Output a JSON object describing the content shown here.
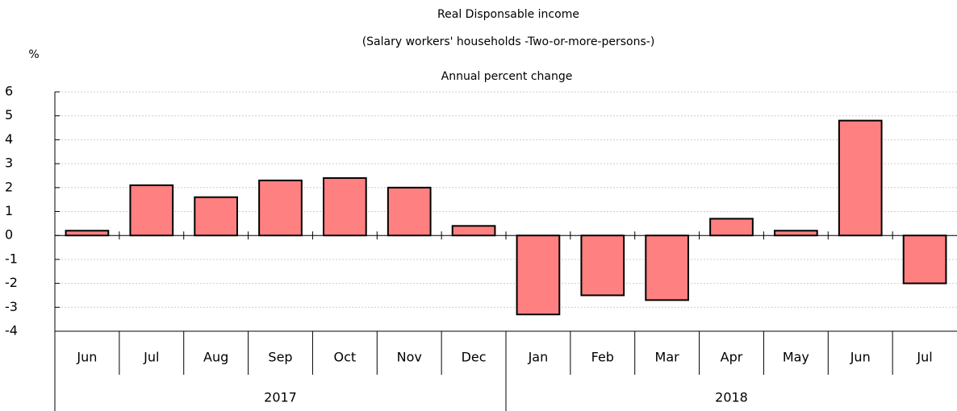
{
  "chart_data": {
    "type": "bar",
    "title": "Real Disponsable income",
    "subtitle": "(Salary workers' households -Two-or-more-persons-)",
    "y_axis_label": "%",
    "annotation": "Annual percent change",
    "groups": [
      {
        "name": "2017",
        "categories": [
          "Jun",
          "Jul",
          "Aug",
          "Sep",
          "Oct",
          "Nov",
          "Dec"
        ]
      },
      {
        "name": "2018",
        "categories": [
          "Jan",
          "Feb",
          "Mar",
          "Apr",
          "May",
          "Jun",
          "Jul"
        ]
      }
    ],
    "values": [
      0.2,
      2.1,
      1.6,
      2.3,
      2.4,
      2.0,
      0.4,
      -3.3,
      -2.5,
      -2.7,
      0.7,
      0.2,
      4.8,
      -2.0
    ],
    "color": "#ff8080",
    "ylim": [
      -4,
      6
    ],
    "yticks": [
      -4,
      -3,
      -2,
      -1,
      0,
      1,
      2,
      3,
      4,
      5,
      6
    ],
    "grid": true
  }
}
